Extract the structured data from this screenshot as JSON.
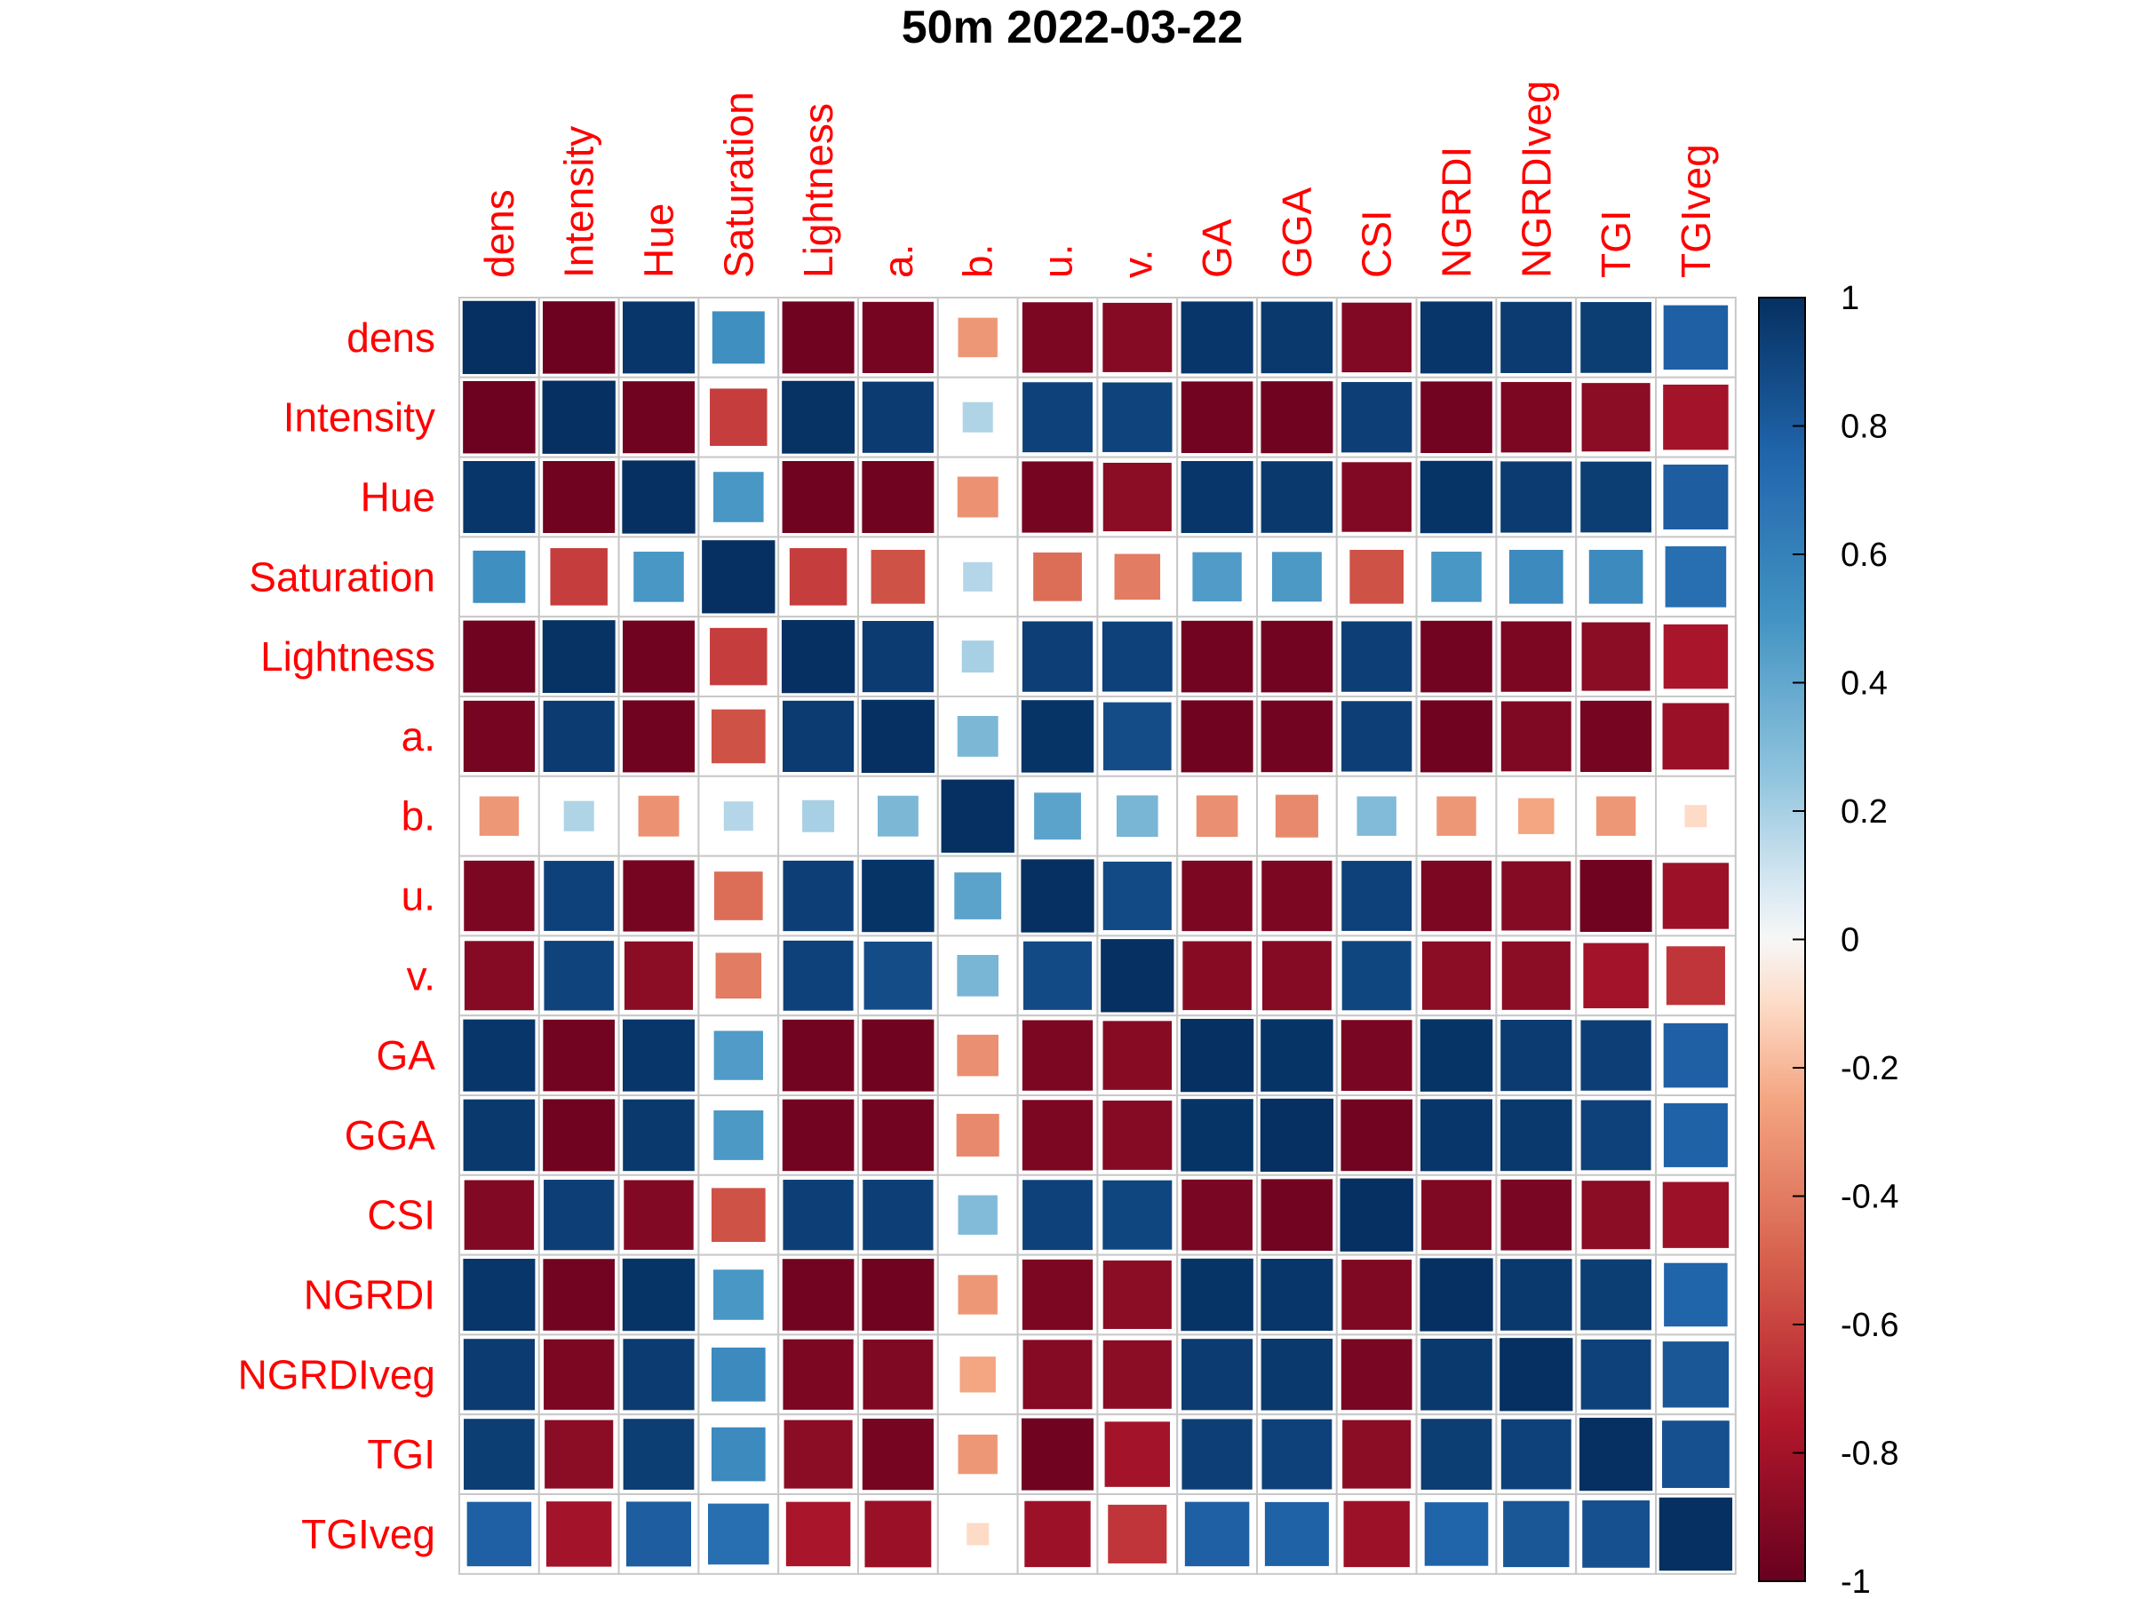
{
  "chart_data": {
    "type": "heatmap",
    "title": "50m 2022-03-22",
    "method": "square",
    "label_color": "#ff0000",
    "variables": [
      "dens",
      "Intensity",
      "Hue",
      "Saturation",
      "Lightness",
      "a.",
      "b.",
      "u.",
      "v.",
      "GA",
      "GGA",
      "CSI",
      "NGRDI",
      "NGRDIveg",
      "TGI",
      "TGIveg"
    ],
    "matrix": [
      [
        1.0,
        -0.98,
        0.97,
        0.52,
        -0.97,
        -0.95,
        -0.3,
        -0.93,
        -0.9,
        0.97,
        0.96,
        -0.91,
        0.97,
        0.95,
        0.94,
        0.78
      ],
      [
        -0.98,
        1.0,
        -0.97,
        -0.62,
        0.99,
        0.95,
        0.18,
        0.92,
        0.91,
        -0.96,
        -0.97,
        0.93,
        -0.96,
        -0.93,
        -0.88,
        -0.8
      ],
      [
        0.97,
        -0.97,
        1.0,
        0.48,
        -0.97,
        -0.97,
        -0.32,
        -0.95,
        -0.88,
        0.97,
        0.96,
        -0.91,
        0.98,
        0.95,
        0.94,
        0.79
      ],
      [
        0.52,
        -0.62,
        0.48,
        1.0,
        -0.62,
        -0.55,
        0.17,
        -0.45,
        -0.4,
        0.46,
        0.47,
        -0.55,
        0.48,
        0.55,
        0.55,
        0.7
      ],
      [
        -0.97,
        0.99,
        -0.97,
        -0.62,
        1.0,
        0.95,
        0.2,
        0.93,
        0.92,
        -0.96,
        -0.96,
        0.93,
        -0.96,
        -0.93,
        -0.88,
        -0.78
      ],
      [
        -0.95,
        0.95,
        -0.97,
        -0.55,
        0.95,
        1.0,
        0.32,
        0.98,
        0.87,
        -0.97,
        -0.96,
        0.93,
        -0.97,
        -0.92,
        -0.95,
        -0.83
      ],
      [
        -0.3,
        0.18,
        -0.32,
        0.17,
        0.2,
        0.32,
        1.0,
        0.42,
        0.33,
        -0.33,
        -0.35,
        0.3,
        -0.3,
        -0.25,
        -0.3,
        -0.1
      ],
      [
        -0.93,
        0.92,
        -0.95,
        -0.45,
        0.93,
        0.98,
        0.42,
        1.0,
        0.88,
        -0.93,
        -0.93,
        0.92,
        -0.93,
        -0.9,
        -0.97,
        -0.82
      ],
      [
        -0.9,
        0.91,
        -0.88,
        -0.4,
        0.92,
        0.87,
        0.33,
        0.88,
        1.0,
        -0.89,
        -0.9,
        0.9,
        -0.88,
        -0.88,
        -0.8,
        -0.65
      ],
      [
        0.97,
        -0.96,
        0.97,
        0.46,
        -0.96,
        -0.97,
        -0.33,
        -0.93,
        -0.89,
        1.0,
        0.98,
        -0.94,
        0.98,
        0.95,
        0.93,
        0.78
      ],
      [
        0.96,
        -0.97,
        0.96,
        0.47,
        -0.96,
        -0.96,
        -0.35,
        -0.93,
        -0.9,
        0.98,
        1.0,
        -0.96,
        0.97,
        0.96,
        0.92,
        0.77
      ],
      [
        -0.91,
        0.93,
        -0.91,
        -0.55,
        0.93,
        0.93,
        0.3,
        0.92,
        0.9,
        -0.94,
        -0.96,
        1.0,
        -0.92,
        -0.94,
        -0.88,
        -0.82
      ],
      [
        0.97,
        -0.96,
        0.98,
        0.48,
        -0.96,
        -0.97,
        -0.3,
        -0.93,
        -0.88,
        0.98,
        0.97,
        -0.92,
        1.0,
        0.96,
        0.94,
        0.76
      ],
      [
        0.95,
        -0.93,
        0.95,
        0.55,
        -0.93,
        -0.92,
        -0.25,
        -0.9,
        -0.88,
        0.95,
        0.96,
        -0.94,
        0.96,
        1.0,
        0.92,
        0.82
      ],
      [
        0.94,
        -0.88,
        0.94,
        0.55,
        -0.88,
        -0.95,
        -0.3,
        -0.97,
        -0.8,
        0.93,
        0.92,
        -0.88,
        0.94,
        0.92,
        1.0,
        0.85
      ],
      [
        0.78,
        -0.8,
        0.79,
        0.7,
        -0.78,
        -0.83,
        -0.1,
        -0.82,
        -0.65,
        0.78,
        0.77,
        -0.82,
        0.76,
        0.82,
        0.85,
        1.0
      ]
    ],
    "colorbar": {
      "ticks": [
        "1",
        "0.8",
        "0.6",
        "0.4",
        "0.2",
        "0",
        "-0.2",
        "-0.4",
        "-0.6",
        "-0.8",
        "-1"
      ],
      "range": [
        -1,
        1
      ],
      "low_color": "#67001f",
      "mid_color": "#f7f7f7",
      "high_color": "#053061"
    }
  }
}
